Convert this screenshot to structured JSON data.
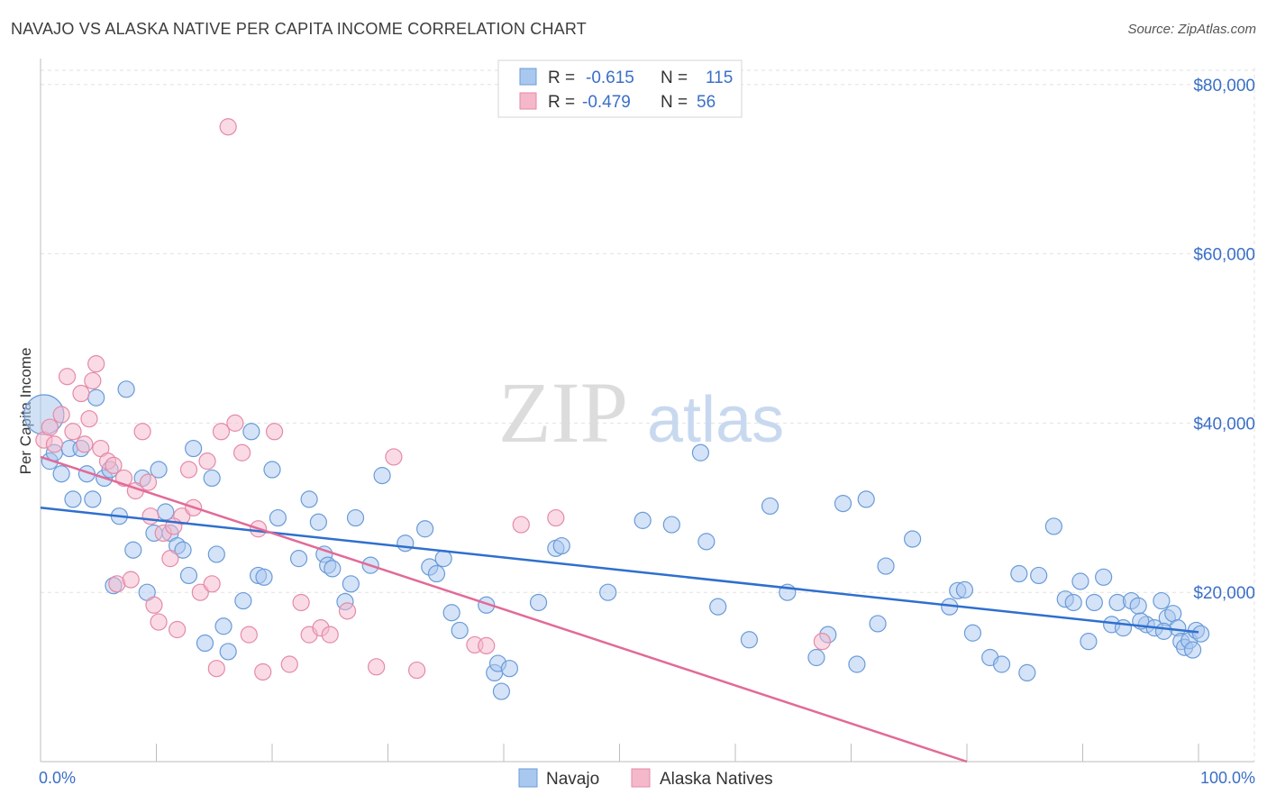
{
  "title": "NAVAJO VS ALASKA NATIVE PER CAPITA INCOME CORRELATION CHART",
  "source": "Source: ZipAtlas.com",
  "watermark": {
    "zip": "ZIP",
    "atlas": "atlas"
  },
  "chart_data": {
    "type": "scatter",
    "ylabel": "Per Capita Income",
    "xlim": [
      0,
      100
    ],
    "ylim": [
      0,
      82000
    ],
    "y_ticks": [
      20000,
      40000,
      60000,
      80000
    ],
    "y_tick_labels": [
      "$20,000",
      "$40,000",
      "$60,000",
      "$80,000"
    ],
    "x_tick_labels": [
      "0.0%",
      "100.0%"
    ],
    "grid": true,
    "legend_top": [
      {
        "r_label": "R =",
        "r_value": "-0.615",
        "n_label": "N =",
        "n_value": "115",
        "color": "#a9c8ef"
      },
      {
        "r_label": "R =",
        "r_value": "-0.479",
        "n_label": "N =",
        "n_value": "56",
        "color": "#f5b8cb"
      }
    ],
    "series": [
      {
        "name": "Navajo",
        "color": "#a9c8ef",
        "stroke": "#6a9bd8",
        "trend": {
          "x": [
            0,
            100
          ],
          "y": [
            30000,
            15300
          ],
          "color": "#2f6fce"
        },
        "points": [
          [
            0.3,
            41000
          ],
          [
            0.8,
            35500
          ],
          [
            1.2,
            36500
          ],
          [
            1.8,
            34000
          ],
          [
            2.5,
            37000
          ],
          [
            2.8,
            31000
          ],
          [
            3.5,
            37000
          ],
          [
            4.0,
            34000
          ],
          [
            4.5,
            31000
          ],
          [
            4.8,
            43000
          ],
          [
            5.5,
            33500
          ],
          [
            6.0,
            34500
          ],
          [
            6.3,
            20800
          ],
          [
            6.8,
            29000
          ],
          [
            7.4,
            44000
          ],
          [
            8.0,
            25000
          ],
          [
            8.8,
            33500
          ],
          [
            9.2,
            20000
          ],
          [
            9.8,
            27000
          ],
          [
            10.2,
            34500
          ],
          [
            10.8,
            29500
          ],
          [
            11.2,
            27000
          ],
          [
            11.8,
            25500
          ],
          [
            12.3,
            25000
          ],
          [
            12.8,
            22000
          ],
          [
            13.2,
            37000
          ],
          [
            14.2,
            14000
          ],
          [
            14.8,
            33500
          ],
          [
            15.2,
            24500
          ],
          [
            15.8,
            16000
          ],
          [
            16.2,
            13000
          ],
          [
            17.5,
            19000
          ],
          [
            18.2,
            39000
          ],
          [
            18.8,
            22000
          ],
          [
            19.3,
            21800
          ],
          [
            20.0,
            34500
          ],
          [
            20.5,
            28800
          ],
          [
            22.3,
            24000
          ],
          [
            23.2,
            31000
          ],
          [
            24.0,
            28300
          ],
          [
            24.5,
            24500
          ],
          [
            24.8,
            23200
          ],
          [
            25.2,
            22800
          ],
          [
            26.3,
            18900
          ],
          [
            26.8,
            21000
          ],
          [
            27.2,
            28800
          ],
          [
            28.5,
            23200
          ],
          [
            29.5,
            33800
          ],
          [
            31.5,
            25800
          ],
          [
            33.2,
            27500
          ],
          [
            33.6,
            23000
          ],
          [
            34.2,
            22200
          ],
          [
            34.8,
            24000
          ],
          [
            35.5,
            17600
          ],
          [
            36.2,
            15500
          ],
          [
            38.5,
            18500
          ],
          [
            39.2,
            10500
          ],
          [
            39.5,
            11600
          ],
          [
            39.8,
            8300
          ],
          [
            40.5,
            11000
          ],
          [
            43.0,
            18800
          ],
          [
            44.5,
            25200
          ],
          [
            45.0,
            25500
          ],
          [
            49.0,
            20000
          ],
          [
            52.0,
            28500
          ],
          [
            54.5,
            28000
          ],
          [
            57.0,
            36500
          ],
          [
            57.5,
            26000
          ],
          [
            58.5,
            18300
          ],
          [
            61.2,
            14400
          ],
          [
            63.0,
            30200
          ],
          [
            64.5,
            20000
          ],
          [
            67.0,
            12300
          ],
          [
            68.0,
            15000
          ],
          [
            69.3,
            30500
          ],
          [
            70.5,
            11500
          ],
          [
            71.3,
            31000
          ],
          [
            72.3,
            16300
          ],
          [
            73.0,
            23100
          ],
          [
            75.3,
            26300
          ],
          [
            78.5,
            18300
          ],
          [
            79.2,
            20200
          ],
          [
            79.8,
            20300
          ],
          [
            80.5,
            15200
          ],
          [
            82.0,
            12300
          ],
          [
            83.0,
            11500
          ],
          [
            84.5,
            22200
          ],
          [
            85.2,
            10500
          ],
          [
            86.2,
            22000
          ],
          [
            87.5,
            27800
          ],
          [
            88.5,
            19200
          ],
          [
            89.2,
            18800
          ],
          [
            89.8,
            21300
          ],
          [
            90.5,
            14200
          ],
          [
            91.0,
            18800
          ],
          [
            91.8,
            21800
          ],
          [
            92.5,
            16200
          ],
          [
            93.0,
            18800
          ],
          [
            93.5,
            15800
          ],
          [
            94.2,
            19000
          ],
          [
            94.8,
            18400
          ],
          [
            95.5,
            16200
          ],
          [
            96.2,
            15800
          ],
          [
            96.8,
            19000
          ],
          [
            97.3,
            17000
          ],
          [
            97.8,
            17500
          ],
          [
            98.2,
            15800
          ],
          [
            98.5,
            14200
          ],
          [
            98.8,
            13500
          ],
          [
            99.2,
            14300
          ],
          [
            99.5,
            13200
          ],
          [
            99.8,
            15500
          ],
          [
            100.2,
            15100
          ],
          [
            97.0,
            15400
          ],
          [
            95.0,
            16600
          ]
        ]
      },
      {
        "name": "Alaska Natives",
        "color": "#f5b8cb",
        "stroke": "#e48aa7",
        "trend": {
          "x": [
            0,
            80
          ],
          "y": [
            36000,
            0
          ],
          "color": "#e26a97"
        },
        "points": [
          [
            0.3,
            38000
          ],
          [
            0.8,
            39500
          ],
          [
            1.2,
            37500
          ],
          [
            1.8,
            41000
          ],
          [
            2.3,
            45500
          ],
          [
            2.8,
            39000
          ],
          [
            3.5,
            43500
          ],
          [
            3.8,
            37500
          ],
          [
            4.5,
            45000
          ],
          [
            4.2,
            40500
          ],
          [
            4.8,
            47000
          ],
          [
            5.2,
            37000
          ],
          [
            5.8,
            35500
          ],
          [
            6.3,
            35000
          ],
          [
            6.6,
            21000
          ],
          [
            7.2,
            33500
          ],
          [
            7.8,
            21500
          ],
          [
            8.2,
            32000
          ],
          [
            8.8,
            39000
          ],
          [
            9.3,
            33000
          ],
          [
            9.8,
            18500
          ],
          [
            10.2,
            16500
          ],
          [
            10.6,
            27000
          ],
          [
            11.2,
            24000
          ],
          [
            11.8,
            15600
          ],
          [
            12.2,
            29000
          ],
          [
            12.8,
            34500
          ],
          [
            13.2,
            30000
          ],
          [
            13.8,
            20000
          ],
          [
            14.4,
            35500
          ],
          [
            14.8,
            21000
          ],
          [
            15.2,
            11000
          ],
          [
            15.6,
            39000
          ],
          [
            16.2,
            75000
          ],
          [
            16.8,
            40000
          ],
          [
            17.4,
            36500
          ],
          [
            18.0,
            15000
          ],
          [
            18.8,
            27500
          ],
          [
            19.2,
            10600
          ],
          [
            20.2,
            39000
          ],
          [
            21.5,
            11500
          ],
          [
            22.5,
            18800
          ],
          [
            23.2,
            15000
          ],
          [
            24.2,
            15800
          ],
          [
            25.0,
            15000
          ],
          [
            26.5,
            17800
          ],
          [
            29.0,
            11200
          ],
          [
            30.5,
            36000
          ],
          [
            32.5,
            10800
          ],
          [
            37.5,
            13800
          ],
          [
            38.5,
            13700
          ],
          [
            41.5,
            28000
          ],
          [
            44.5,
            28800
          ],
          [
            67.5,
            14200
          ],
          [
            9.5,
            29000
          ],
          [
            11.5,
            27800
          ]
        ]
      }
    ]
  }
}
